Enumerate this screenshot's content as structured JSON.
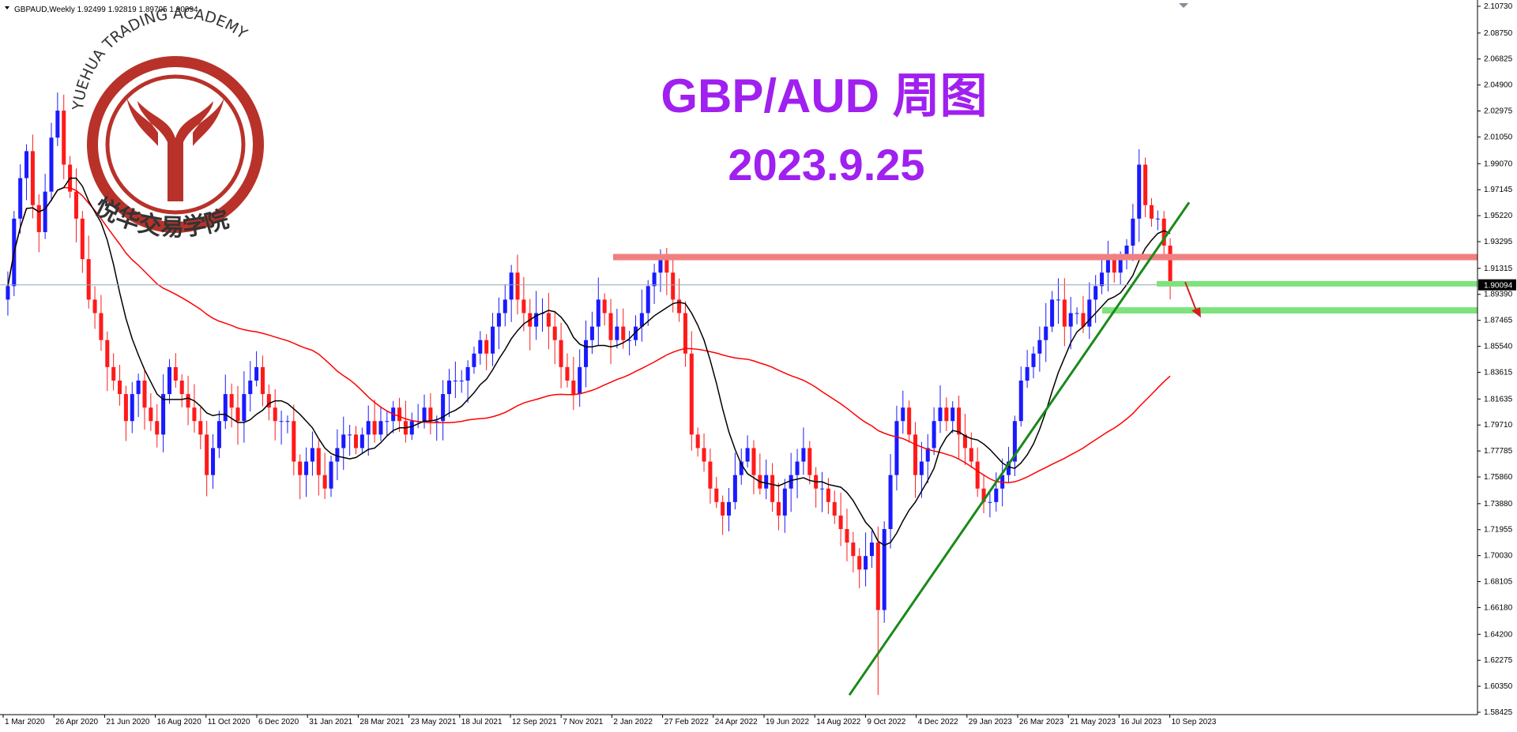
{
  "header": {
    "symbol_line": "GBPAUD,Weekly  1.92499 1.92819 1.89705 1.90094"
  },
  "watermark": {
    "academy_en": "YUEHUA TRADING ACADEMY",
    "academy_cn": "悦华交易学院",
    "logo_color": "#b8322a"
  },
  "overlay": {
    "title": "GBP/AUD 周图",
    "date": "2023.9.25",
    "color": "#a020f0"
  },
  "chart_data": {
    "type": "candlestick",
    "symbol": "GBPAUD",
    "timeframe": "Weekly",
    "ylim": [
      1.58425,
      2.1073
    ],
    "y_ticks": [
      "2.10730",
      "2.08750",
      "2.06825",
      "2.04900",
      "2.02975",
      "2.01050",
      "1.99070",
      "1.97145",
      "1.95220",
      "1.93295",
      "1.91315",
      "1.89390",
      "1.87465",
      "1.85540",
      "1.83615",
      "1.81635",
      "1.79710",
      "1.77785",
      "1.75860",
      "1.73880",
      "1.71955",
      "1.70030",
      "1.68105",
      "1.66180",
      "1.64200",
      "1.62275",
      "1.60350",
      "1.58425"
    ],
    "x_ticks": [
      "1 Mar 2020",
      "26 Apr 2020",
      "21 Jun 2020",
      "16 Aug 2020",
      "11 Oct 2020",
      "6 Dec 2020",
      "31 Jan 2021",
      "28 Mar 2021",
      "23 May 2021",
      "18 Jul 2021",
      "12 Sep 2021",
      "7 Nov 2021",
      "2 Jan 2022",
      "27 Feb 2022",
      "24 Apr 2022",
      "19 Jun 2022",
      "14 Aug 2022",
      "9 Oct 2022",
      "4 Dec 2022",
      "29 Jan 2023",
      "26 Mar 2023",
      "21 May 2023",
      "16 Jul 2023",
      "10 Sep 2023"
    ],
    "current_price": "1.90094",
    "close_series": [
      1.9,
      1.95,
      1.98,
      2.0,
      1.96,
      1.94,
      1.97,
      2.01,
      2.03,
      1.99,
      1.97,
      1.95,
      1.92,
      1.89,
      1.88,
      1.86,
      1.84,
      1.83,
      1.82,
      1.8,
      1.82,
      1.83,
      1.81,
      1.8,
      1.79,
      1.82,
      1.84,
      1.83,
      1.82,
      1.81,
      1.8,
      1.79,
      1.76,
      1.78,
      1.8,
      1.82,
      1.81,
      1.8,
      1.82,
      1.83,
      1.84,
      1.82,
      1.81,
      1.8,
      1.8,
      1.8,
      1.77,
      1.76,
      1.77,
      1.78,
      1.76,
      1.75,
      1.77,
      1.78,
      1.79,
      1.79,
      1.78,
      1.79,
      1.8,
      1.79,
      1.8,
      1.8,
      1.81,
      1.8,
      1.79,
      1.8,
      1.8,
      1.81,
      1.8,
      1.8,
      1.82,
      1.83,
      1.83,
      1.83,
      1.84,
      1.85,
      1.86,
      1.85,
      1.87,
      1.88,
      1.89,
      1.91,
      1.89,
      1.88,
      1.87,
      1.88,
      1.88,
      1.87,
      1.86,
      1.84,
      1.83,
      1.82,
      1.84,
      1.86,
      1.87,
      1.89,
      1.88,
      1.86,
      1.87,
      1.86,
      1.86,
      1.87,
      1.88,
      1.9,
      1.91,
      1.92,
      1.91,
      1.89,
      1.88,
      1.85,
      1.79,
      1.78,
      1.77,
      1.75,
      1.74,
      1.73,
      1.74,
      1.76,
      1.77,
      1.78,
      1.76,
      1.75,
      1.76,
      1.74,
      1.73,
      1.75,
      1.76,
      1.77,
      1.78,
      1.76,
      1.75,
      1.75,
      1.74,
      1.73,
      1.72,
      1.71,
      1.7,
      1.69,
      1.7,
      1.71,
      1.66,
      1.72,
      1.76,
      1.8,
      1.81,
      1.79,
      1.76,
      1.77,
      1.78,
      1.8,
      1.81,
      1.8,
      1.81,
      1.79,
      1.78,
      1.77,
      1.75,
      1.74,
      1.74,
      1.75,
      1.76,
      1.77,
      1.8,
      1.83,
      1.84,
      1.85,
      1.86,
      1.87,
      1.89,
      1.89,
      1.87,
      1.88,
      1.88,
      1.87,
      1.89,
      1.9,
      1.91,
      1.92,
      1.91,
      1.92,
      1.93,
      1.95,
      1.99,
      1.96,
      1.95,
      1.95,
      1.93,
      1.9
    ],
    "ma_short": "black",
    "ma_long": "red",
    "trend_line": {
      "from": [
        "14 Aug 2022",
        1.597
      ],
      "to": [
        "10 Sep 2023",
        1.962
      ],
      "color": "#1a8a1a"
    },
    "resistance_zone": {
      "price": 1.9215,
      "color": "#f08080"
    },
    "support_zones": [
      {
        "price": 1.902,
        "color": "#7ee37e"
      },
      {
        "price": 1.882,
        "color": "#7ee37e"
      }
    ],
    "arrow": {
      "from_price": 1.903,
      "to_price": 1.879,
      "color": "#d42020"
    },
    "grid": false
  }
}
